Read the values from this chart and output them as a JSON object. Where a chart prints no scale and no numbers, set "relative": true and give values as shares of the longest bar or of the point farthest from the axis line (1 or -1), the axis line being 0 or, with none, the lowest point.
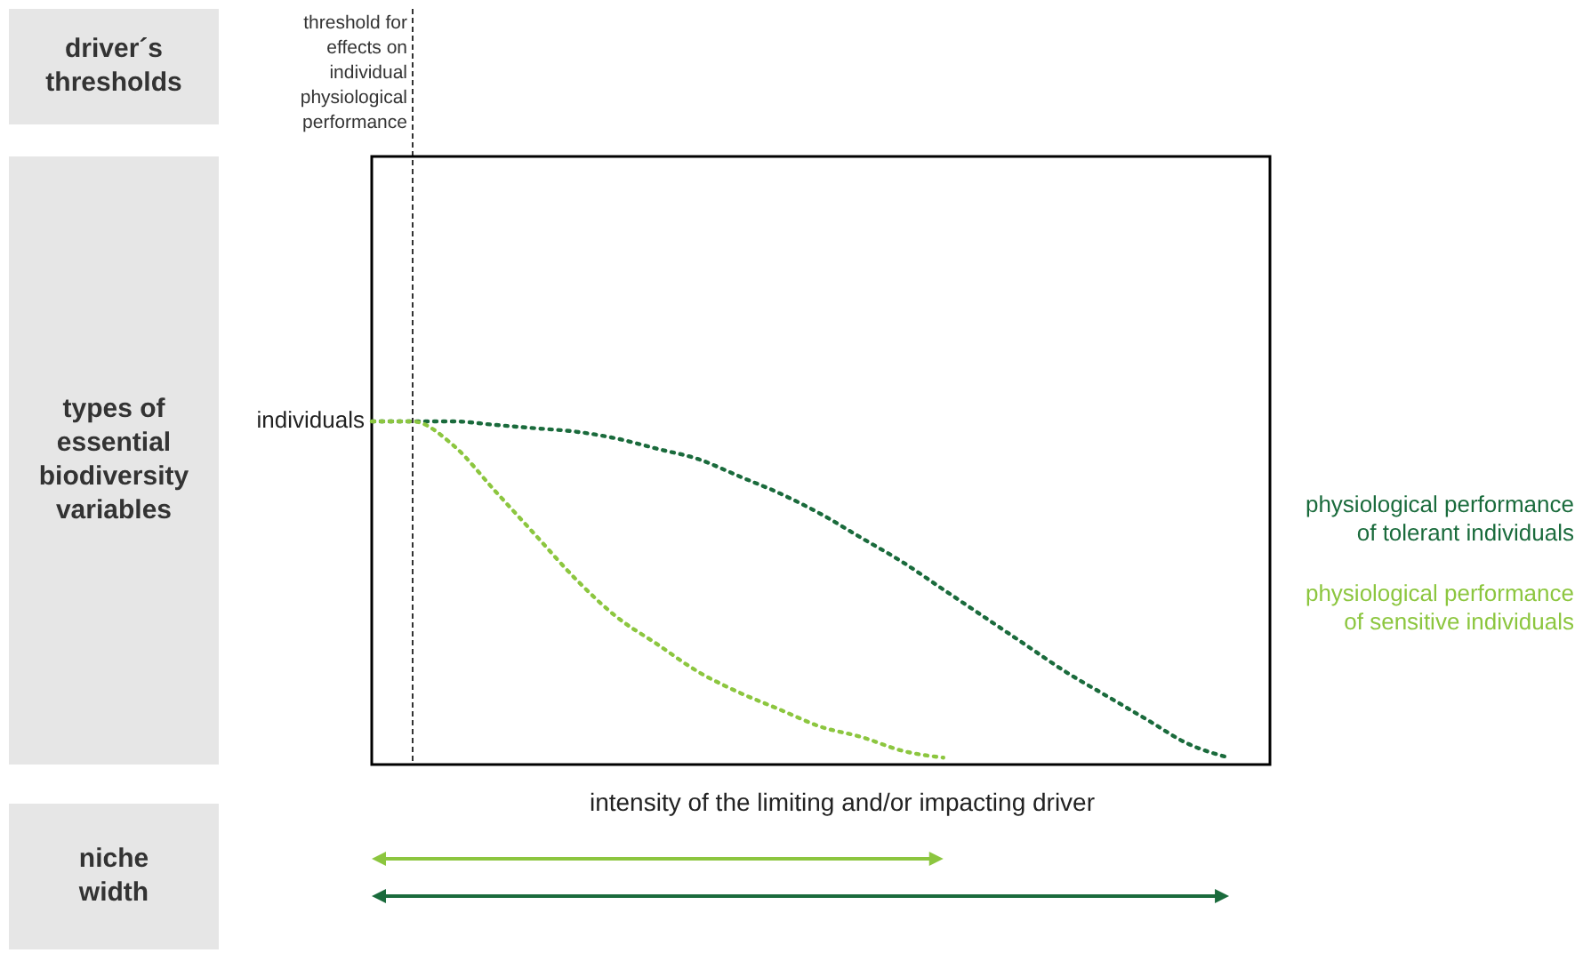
{
  "chart_data": {
    "type": "line",
    "relative": true,
    "xlabel": "intensity of the limiting and/or impacting driver",
    "categories": [
      null,
      null,
      null,
      null,
      null,
      null,
      null,
      null,
      null,
      null,
      null,
      null,
      null,
      null,
      null,
      null,
      null,
      null,
      null,
      null,
      null,
      null,
      null
    ],
    "series": [
      {
        "name": "physiological performance of tolerant individuals",
        "color": "#1a6b3c",
        "values": [
          1.0,
          1.0,
          1.0,
          0.99,
          0.98,
          0.97,
          0.95,
          0.92,
          0.89,
          0.84,
          0.79,
          0.73,
          0.66,
          0.59,
          0.51,
          0.43,
          0.35,
          0.27,
          0.2,
          0.13,
          0.06,
          0.02,
          null
        ]
      },
      {
        "name": "physiological performance of sensitive individuals",
        "color": "#8cc63f",
        "values": [
          1.0,
          1.0,
          0.93,
          0.8,
          0.67,
          0.54,
          0.43,
          0.35,
          0.27,
          0.21,
          0.16,
          0.11,
          0.08,
          0.04,
          0.02,
          null,
          null,
          null,
          null,
          null,
          null,
          null,
          null
        ]
      }
    ],
    "annotations": [
      "driver´s thresholds",
      "types of essential biodiversity variables",
      "niche width",
      "individuals",
      "threshold for effects on individual physiological performance"
    ],
    "line_style": "dotted",
    "marker": "none",
    "legend": "right",
    "grid": false
  }
}
